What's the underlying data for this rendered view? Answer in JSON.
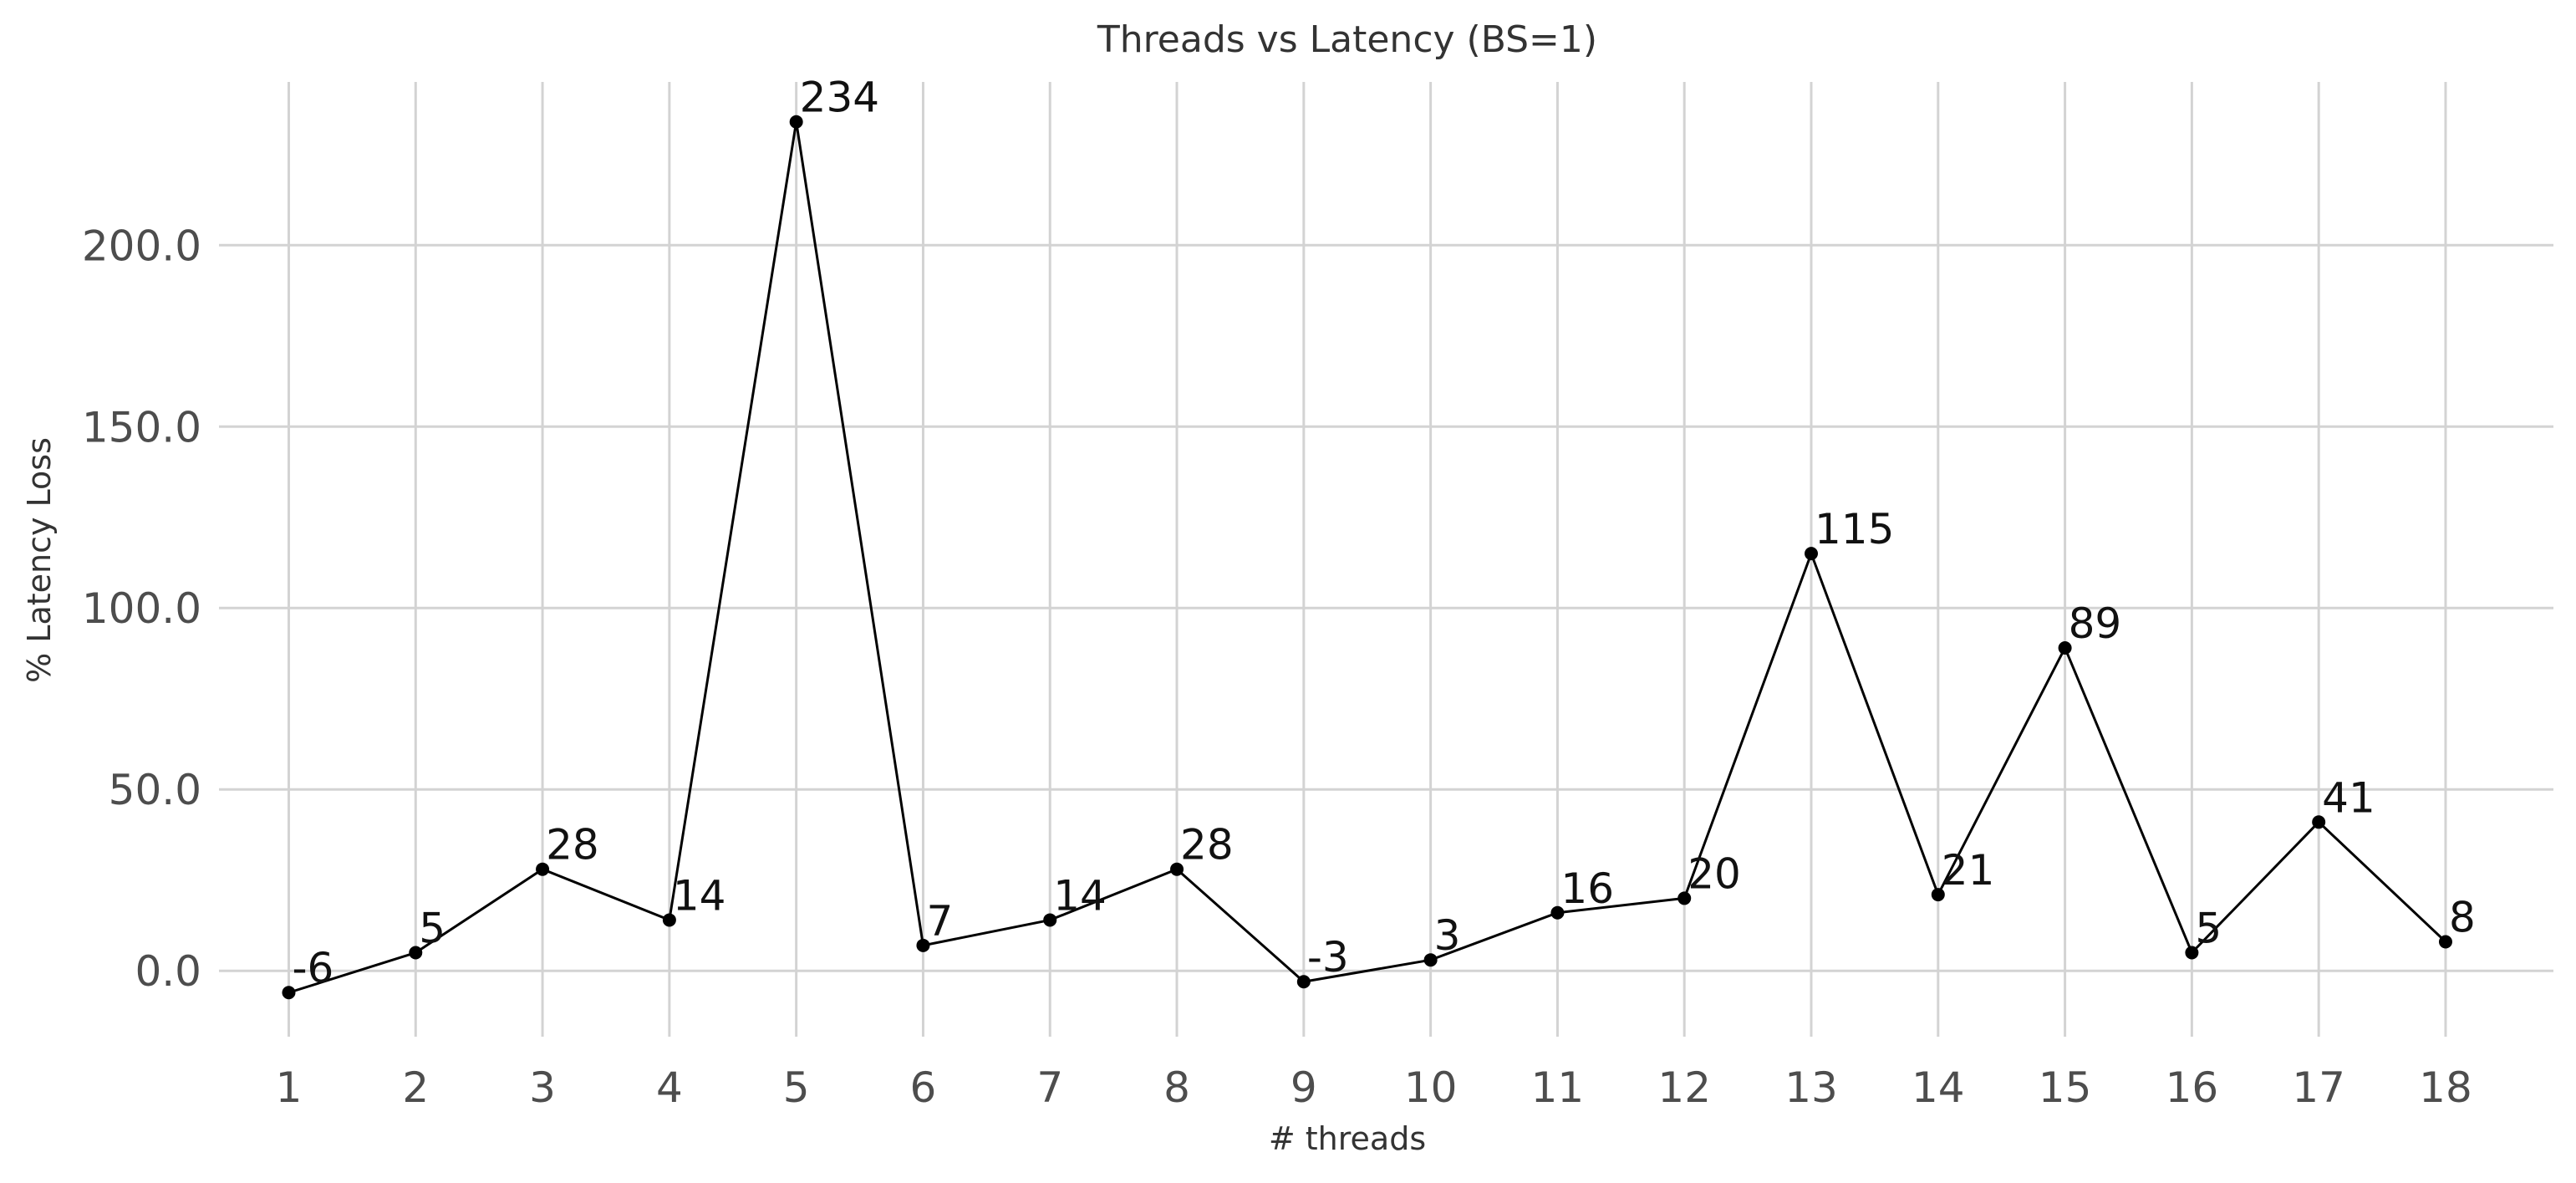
{
  "chart_data": {
    "type": "line",
    "title": "Threads vs Latency (BS=1)",
    "xlabel": "# threads",
    "ylabel": "% Latency Loss",
    "x": [
      1,
      2,
      3,
      4,
      5,
      6,
      7,
      8,
      9,
      10,
      11,
      12,
      13,
      14,
      15,
      16,
      17,
      18
    ],
    "series": [
      {
        "name": "",
        "values": [
          -6,
          5,
          28,
          14,
          234,
          7,
          14,
          28,
          -3,
          3,
          16,
          20,
          115,
          21,
          89,
          5,
          41,
          8
        ]
      }
    ],
    "data_labels": [
      "-6",
      "5",
      "28",
      "14",
      "234",
      "7",
      "14",
      "28",
      "-3",
      "3",
      "16",
      "20",
      "115",
      "21",
      "89",
      "5",
      "41",
      "8"
    ],
    "x_tick_labels": [
      "1",
      "2",
      "3",
      "4",
      "5",
      "6",
      "7",
      "8",
      "9",
      "10",
      "11",
      "12",
      "13",
      "14",
      "15",
      "16",
      "17",
      "18"
    ],
    "y_ticks": [
      0,
      50,
      100,
      150,
      200
    ],
    "y_tick_labels": [
      "0.0",
      "50.0",
      "100.0",
      "150.0",
      "200.0"
    ],
    "xlim": [
      0.45,
      18.85
    ],
    "ylim": [
      -20,
      245
    ],
    "grid": true,
    "legend": "none",
    "colors": {
      "line": "#000000",
      "grid": "#d3d3d3",
      "tick_text": "#4d4d4d",
      "title_text": "#333333"
    }
  }
}
